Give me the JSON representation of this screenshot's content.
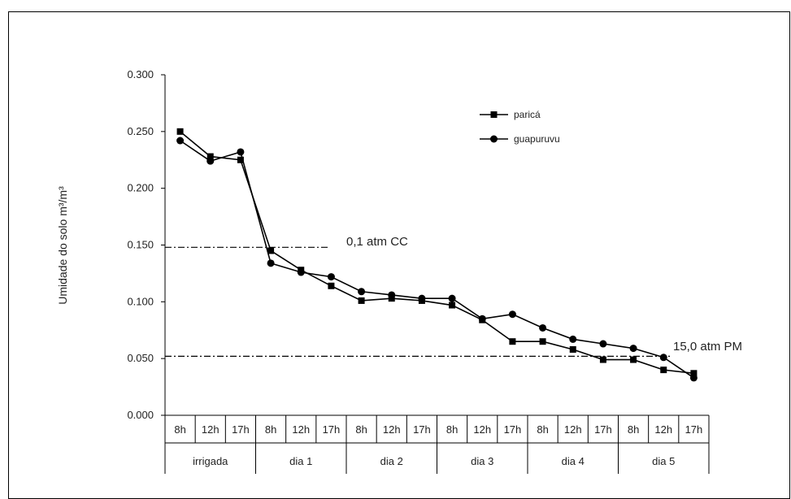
{
  "chart_data": {
    "type": "line",
    "ylabel": "Umidade do solo m³/m³",
    "ylim": [
      0,
      0.3
    ],
    "yticks": [
      "0.000",
      "0.050",
      "0.100",
      "0.150",
      "0.200",
      "0.250",
      "0.300"
    ],
    "ytick_values": [
      0,
      0.05,
      0.1,
      0.15,
      0.2,
      0.25,
      0.3
    ],
    "x_hours": [
      "8h",
      "12h",
      "17h",
      "8h",
      "12h",
      "17h",
      "8h",
      "12h",
      "17h",
      "8h",
      "12h",
      "17h",
      "8h",
      "12h",
      "17h",
      "8h",
      "12h",
      "17h"
    ],
    "x_groups": [
      "irrigada",
      "dia 1",
      "dia 2",
      "dia 3",
      "dia 4",
      "dia 5"
    ],
    "series": [
      {
        "name": "paricá",
        "marker": "square",
        "values": [
          0.25,
          0.228,
          0.225,
          0.145,
          0.128,
          0.114,
          0.101,
          0.103,
          0.101,
          0.097,
          0.084,
          0.065,
          0.065,
          0.058,
          0.049,
          0.049,
          0.04,
          0.037
        ]
      },
      {
        "name": "guapuruvu",
        "marker": "circle",
        "values": [
          0.242,
          0.224,
          0.232,
          0.134,
          0.126,
          0.122,
          0.109,
          0.106,
          0.103,
          0.103,
          0.085,
          0.089,
          0.077,
          0.067,
          0.063,
          0.059,
          0.051,
          0.033
        ]
      }
    ],
    "reference_lines": [
      {
        "value": 0.148,
        "label": "0,1 atm CC"
      },
      {
        "value": 0.052,
        "label": "15,0 atm  PM"
      }
    ],
    "legend": "top-right",
    "grid": false,
    "color": "#000000"
  }
}
